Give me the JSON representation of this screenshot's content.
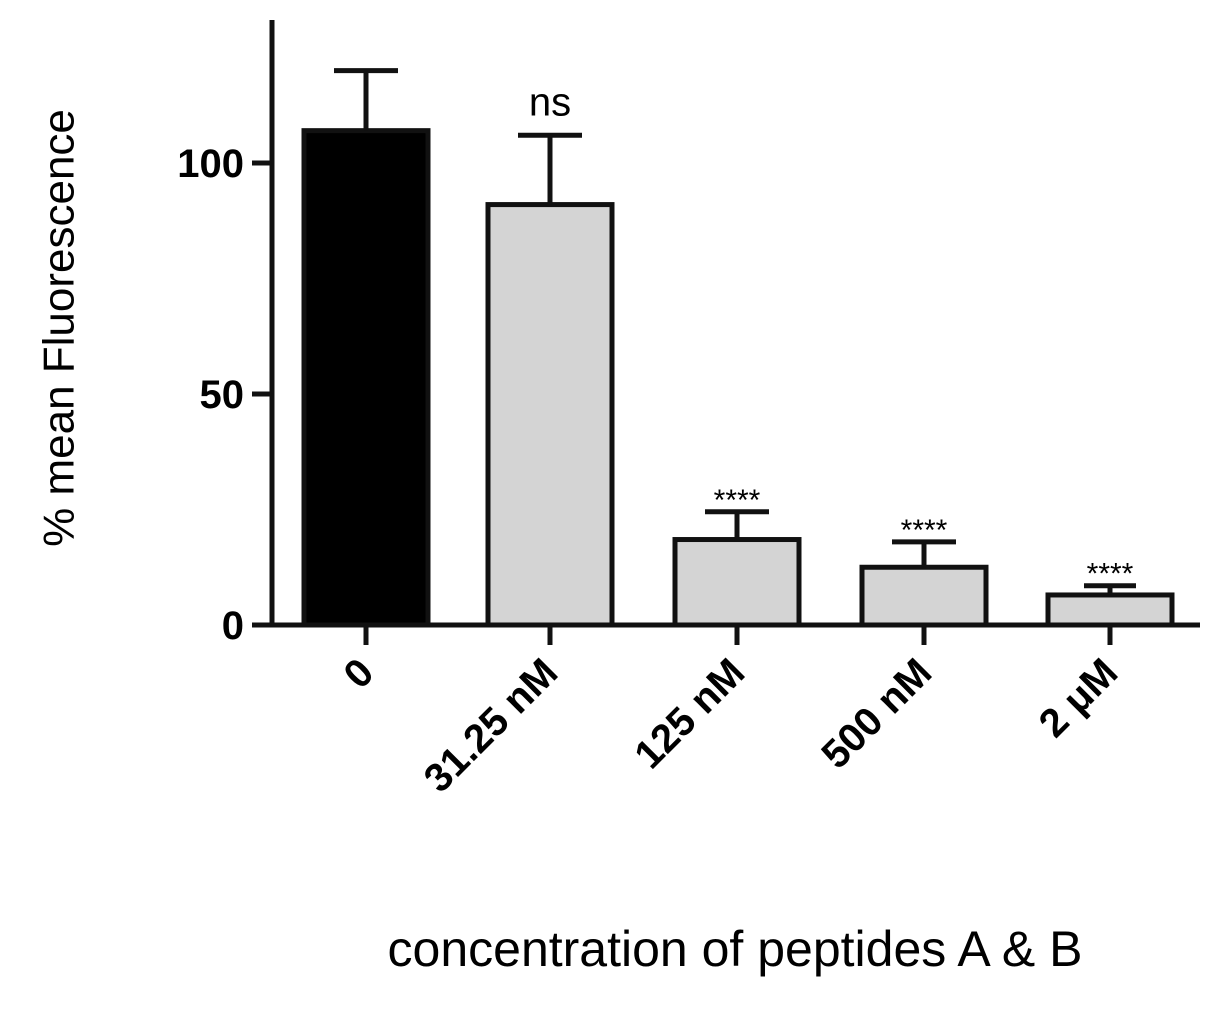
{
  "chart_data": {
    "type": "bar",
    "categories": [
      "0",
      "31.25 nM",
      "125 nM",
      "500 nM",
      "2 μM"
    ],
    "values": [
      107,
      91,
      18.5,
      12.5,
      6.5
    ],
    "errors": [
      13,
      15,
      6,
      5.5,
      2
    ],
    "annotations": [
      "",
      "ns",
      "****",
      "****",
      "****"
    ],
    "bar_colors": [
      "#000000",
      "#d4d4d4",
      "#d4d4d4",
      "#d4d4d4",
      "#d4d4d4"
    ],
    "edge_color": "#111111",
    "ylabel": "% mean Fluorescence",
    "xlabel": "concentration of peptides A & B",
    "yticks": [
      0,
      50,
      100
    ],
    "ylim": [
      0,
      130
    ],
    "grid": false
  }
}
